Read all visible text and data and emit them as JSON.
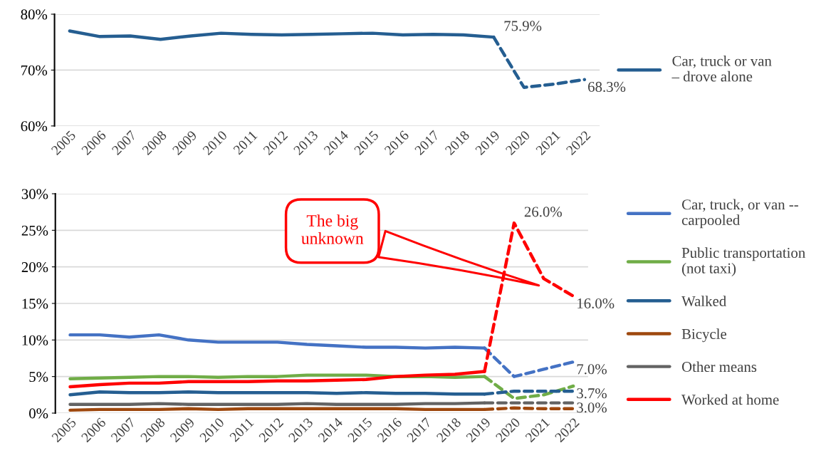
{
  "chart_data": [
    {
      "type": "line",
      "categories": [
        "2005",
        "2006",
        "2007",
        "2008",
        "2009",
        "2010",
        "2011",
        "2012",
        "2013",
        "2014",
        "2015",
        "2016",
        "2017",
        "2018",
        "2019",
        "2020",
        "2021",
        "2022"
      ],
      "series": [
        {
          "name": "Car, truck or van\n– drove alone",
          "color": "#255e91",
          "line_style": "solid",
          "values": [
            77.0,
            76.0,
            76.1,
            75.5,
            76.1,
            76.6,
            76.4,
            76.3,
            76.4,
            76.5,
            76.6,
            76.3,
            76.4,
            76.3,
            75.9,
            null,
            null,
            null
          ]
        },
        {
          "color": "#255e91",
          "line_style": "dashed",
          "values": [
            null,
            null,
            null,
            null,
            null,
            null,
            null,
            null,
            null,
            null,
            null,
            null,
            null,
            null,
            75.9,
            66.9,
            67.5,
            68.3
          ],
          "value_labels": [
            null,
            null,
            null,
            null,
            null,
            null,
            null,
            null,
            null,
            null,
            null,
            null,
            null,
            null,
            "75.9%",
            null,
            null,
            "68.3%"
          ]
        }
      ],
      "ylim": [
        60,
        80
      ],
      "yticks": [
        {
          "value": 60,
          "label": "60%"
        },
        {
          "value": 70,
          "label": "70%"
        },
        {
          "value": 80,
          "label": "80%"
        }
      ],
      "grid": "y",
      "legend": "right",
      "marker": "none"
    },
    {
      "type": "line",
      "categories": [
        "2005",
        "2006",
        "2007",
        "2008",
        "2009",
        "2010",
        "2011",
        "2012",
        "2013",
        "2014",
        "2015",
        "2016",
        "2017",
        "2018",
        "2019",
        "2020",
        "2021",
        "2022"
      ],
      "series": [
        {
          "name": "Car, truck, or van --\ncarpooled",
          "color": "#4472c4",
          "line_style": "solid",
          "values": [
            10.7,
            10.7,
            10.4,
            10.7,
            10.0,
            9.7,
            9.7,
            9.7,
            9.4,
            9.2,
            9.0,
            9.0,
            8.9,
            9.0,
            8.9,
            null,
            null,
            null
          ]
        },
        {
          "name": "Public transportation\n(not taxi)",
          "color": "#70ad47",
          "line_style": "solid",
          "values": [
            4.7,
            4.8,
            4.9,
            5.0,
            5.0,
            4.9,
            5.0,
            5.0,
            5.2,
            5.2,
            5.2,
            5.0,
            5.0,
            4.9,
            5.0,
            null,
            null,
            null
          ]
        },
        {
          "name": "Walked",
          "color": "#255e91",
          "line_style": "solid",
          "values": [
            2.5,
            2.9,
            2.8,
            2.8,
            2.9,
            2.8,
            2.8,
            2.8,
            2.8,
            2.7,
            2.8,
            2.7,
            2.7,
            2.6,
            2.6,
            null,
            null,
            null
          ]
        },
        {
          "name": "Bicycle",
          "color": "#9e480e",
          "line_style": "solid",
          "values": [
            0.4,
            0.5,
            0.5,
            0.5,
            0.6,
            0.5,
            0.6,
            0.6,
            0.6,
            0.6,
            0.6,
            0.6,
            0.5,
            0.5,
            0.5,
            null,
            null,
            null
          ]
        },
        {
          "name": "Other means",
          "color": "#636363",
          "line_style": "solid",
          "values": [
            1.2,
            1.2,
            1.2,
            1.3,
            1.2,
            1.2,
            1.2,
            1.2,
            1.3,
            1.2,
            1.2,
            1.2,
            1.3,
            1.3,
            1.4,
            null,
            null,
            null
          ]
        },
        {
          "name": "Worked at home",
          "color": "#ff0000",
          "line_style": "solid",
          "values": [
            3.6,
            3.9,
            4.1,
            4.1,
            4.3,
            4.3,
            4.3,
            4.4,
            4.4,
            4.5,
            4.6,
            5.0,
            5.2,
            5.3,
            5.7,
            null,
            null,
            null
          ]
        },
        {
          "color": "#4472c4",
          "line_style": "dashed",
          "values": [
            null,
            null,
            null,
            null,
            null,
            null,
            null,
            null,
            null,
            null,
            null,
            null,
            null,
            null,
            8.9,
            5.0,
            6.0,
            7.0
          ],
          "value_labels": [
            null,
            null,
            null,
            null,
            null,
            null,
            null,
            null,
            null,
            null,
            null,
            null,
            null,
            null,
            null,
            null,
            null,
            "7.0%"
          ]
        },
        {
          "color": "#70ad47",
          "line_style": "dashed",
          "values": [
            null,
            null,
            null,
            null,
            null,
            null,
            null,
            null,
            null,
            null,
            null,
            null,
            null,
            null,
            5.0,
            2.0,
            2.5,
            3.7
          ],
          "value_labels": [
            null,
            null,
            null,
            null,
            null,
            null,
            null,
            null,
            null,
            null,
            null,
            null,
            null,
            null,
            null,
            null,
            null,
            "3.7%"
          ]
        },
        {
          "color": "#255e91",
          "line_style": "dashed",
          "values": [
            null,
            null,
            null,
            null,
            null,
            null,
            null,
            null,
            null,
            null,
            null,
            null,
            null,
            null,
            2.6,
            3.0,
            3.0,
            3.0
          ],
          "value_labels": [
            null,
            null,
            null,
            null,
            null,
            null,
            null,
            null,
            null,
            null,
            null,
            null,
            null,
            null,
            null,
            null,
            null,
            "3.0%"
          ]
        },
        {
          "color": "#9e480e",
          "line_style": "dashed",
          "values": [
            null,
            null,
            null,
            null,
            null,
            null,
            null,
            null,
            null,
            null,
            null,
            null,
            null,
            null,
            0.5,
            0.7,
            0.6,
            0.6
          ]
        },
        {
          "color": "#636363",
          "line_style": "dashed",
          "values": [
            null,
            null,
            null,
            null,
            null,
            null,
            null,
            null,
            null,
            null,
            null,
            null,
            null,
            null,
            1.4,
            1.4,
            1.4,
            1.4
          ]
        },
        {
          "color": "#ff0000",
          "line_style": "dashed",
          "values": [
            null,
            null,
            null,
            null,
            null,
            null,
            null,
            null,
            null,
            null,
            null,
            null,
            null,
            null,
            5.7,
            26.0,
            18.4,
            16.0
          ],
          "value_labels": [
            null,
            null,
            null,
            null,
            null,
            null,
            null,
            null,
            null,
            null,
            null,
            null,
            null,
            null,
            null,
            "26.0%",
            null,
            "16.0%"
          ]
        }
      ],
      "ylim": [
        0,
        30
      ],
      "yticks": [
        {
          "value": 0,
          "label": "0%"
        },
        {
          "value": 5,
          "label": "5%"
        },
        {
          "value": 10,
          "label": "10%"
        },
        {
          "value": 15,
          "label": "15%"
        },
        {
          "value": 20,
          "label": "20%"
        },
        {
          "value": 25,
          "label": "25%"
        },
        {
          "value": 30,
          "label": "30%"
        }
      ],
      "annotations": [
        "The big\nunknown"
      ],
      "grid": "y",
      "legend": "right",
      "marker": "none"
    }
  ]
}
